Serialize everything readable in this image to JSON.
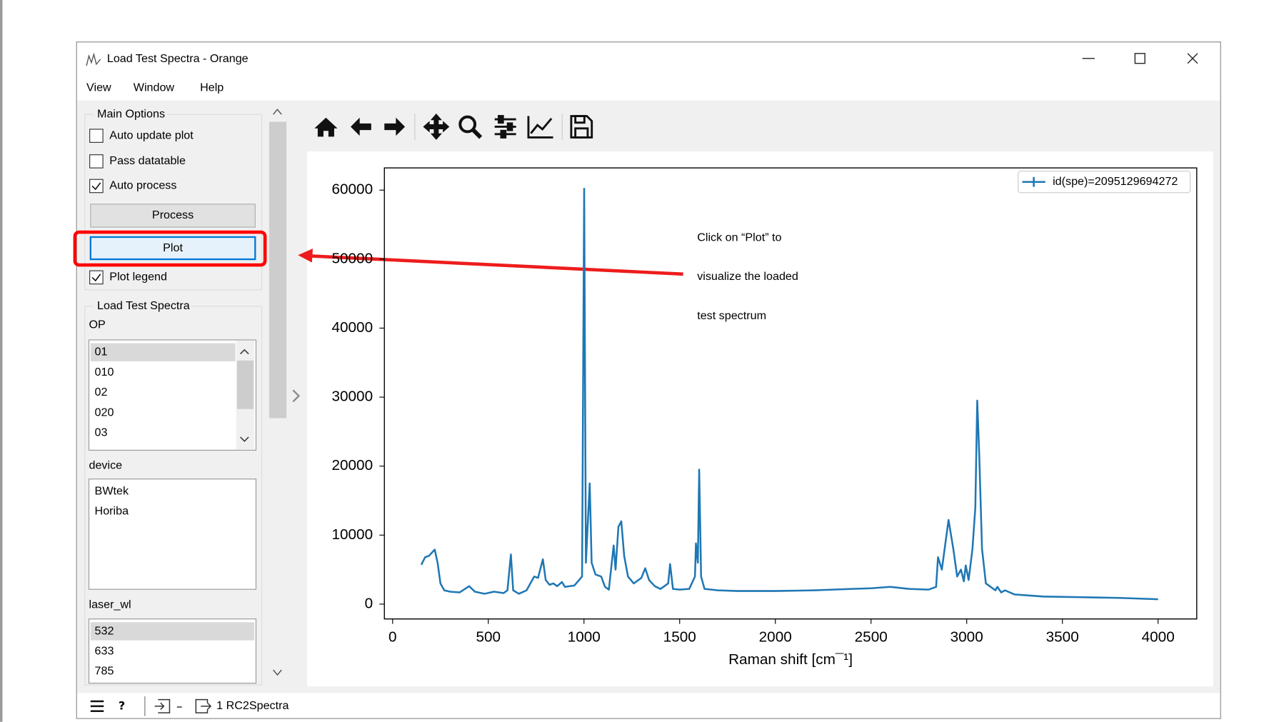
{
  "window": {
    "title": "Load Test Spectra - Orange"
  },
  "menu": [
    "View",
    "Window",
    "Help"
  ],
  "main_options": {
    "title": "Main Options",
    "checkboxes": [
      {
        "label": "Auto update plot",
        "checked": false
      },
      {
        "label": "Pass datatable",
        "checked": false
      },
      {
        "label": "Auto process",
        "checked": true
      }
    ],
    "buttons": [
      "Process",
      "Plot"
    ],
    "legend_checkbox": {
      "label": "Plot legend",
      "checked": true
    }
  },
  "load_group": {
    "title": "Load Test Spectra",
    "lists": [
      {
        "label": "OP",
        "items": [
          "01",
          "010",
          "02",
          "020",
          "03"
        ],
        "selected": 0
      },
      {
        "label": "device",
        "items": [
          "BWtek",
          "Horiba"
        ]
      },
      {
        "label": "laser_wl",
        "items": [
          "532",
          "633",
          "785"
        ],
        "selected": 0
      }
    ]
  },
  "status": {
    "text": "1 RC2Spectra"
  },
  "annotation": {
    "lines": [
      "Click on “Plot” to",
      "visualize the loaded",
      "test spectrum"
    ]
  },
  "chart_data": {
    "type": "line",
    "xlabel": "Raman shift [cm¯¹]",
    "legend": "upper right",
    "xlim": [
      -43,
      4202
    ],
    "ylim": [
      -2150,
      63220
    ],
    "xticks": [
      0,
      500,
      1000,
      1500,
      2000,
      2500,
      3000,
      3500,
      4000
    ],
    "yticks": [
      0,
      10000,
      20000,
      30000,
      40000,
      50000,
      60000
    ],
    "x": [
      150,
      170,
      190,
      210,
      220,
      235,
      250,
      270,
      300,
      350,
      400,
      430,
      480,
      530,
      580,
      600,
      618,
      630,
      660,
      700,
      740,
      760,
      785,
      800,
      820,
      840,
      860,
      885,
      900,
      950,
      990,
      1001,
      1010,
      1030,
      1040,
      1060,
      1090,
      1110,
      1130,
      1155,
      1165,
      1180,
      1195,
      1210,
      1230,
      1260,
      1300,
      1320,
      1340,
      1370,
      1400,
      1440,
      1450,
      1465,
      1500,
      1550,
      1580,
      1585,
      1595,
      1602,
      1612,
      1630,
      1700,
      1800,
      1900,
      2000,
      2100,
      2200,
      2300,
      2400,
      2500,
      2600,
      2700,
      2800,
      2840,
      2850,
      2870,
      2905,
      2930,
      2950,
      2970,
      2985,
      2995,
      3010,
      3030,
      3045,
      3055,
      3065,
      3080,
      3100,
      3150,
      3160,
      3180,
      3200,
      3250,
      3400,
      3600,
      3800,
      4000
    ],
    "series": [
      {
        "name": "id(spe)=2095129694272",
        "color": "#1f77b4",
        "values": [
          5700,
          6800,
          7000,
          7600,
          7900,
          6000,
          3000,
          2000,
          1800,
          1700,
          2600,
          1800,
          1500,
          1800,
          1600,
          2000,
          7200,
          2000,
          1500,
          2000,
          4000,
          3800,
          6500,
          3500,
          2800,
          3000,
          2600,
          3200,
          2500,
          2700,
          4000,
          60200,
          6000,
          17500,
          6000,
          4300,
          4000,
          2500,
          2100,
          8500,
          5000,
          11200,
          12000,
          7000,
          4000,
          3000,
          3800,
          5200,
          3500,
          2600,
          2200,
          3000,
          5800,
          2200,
          2100,
          2200,
          4000,
          8800,
          6000,
          19500,
          4000,
          2200,
          2000,
          1900,
          1900,
          1900,
          1950,
          2000,
          2100,
          2200,
          2300,
          2500,
          2200,
          2100,
          2500,
          6800,
          5000,
          12200,
          8000,
          4000,
          5000,
          3300,
          5600,
          3500,
          8000,
          14000,
          29500,
          22000,
          8000,
          3000,
          2000,
          2500,
          1700,
          2000,
          1400,
          1100,
          1000,
          900,
          700
        ]
      }
    ]
  }
}
